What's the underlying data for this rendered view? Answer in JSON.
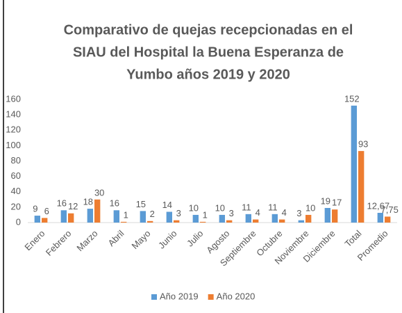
{
  "chart_data": {
    "type": "bar",
    "title": [
      "Comparativo de quejas recepcionadas en el",
      "SIAU del Hospital la Buena Esperanza de",
      "Yumbo años 2019 y 2020"
    ],
    "categories": [
      "Enero",
      "Febrero",
      "Marzo",
      "Abril",
      "Mayo",
      "Junio",
      "Julio",
      "Agosto",
      "Septiembre",
      "Octubre",
      "Noviembre",
      "Diciembre",
      "Total",
      "Promedio"
    ],
    "series": [
      {
        "name": "Año 2019",
        "color": "#5b9bd5",
        "values": [
          9,
          16,
          18,
          16,
          15,
          14,
          10,
          10,
          11,
          11,
          3,
          19,
          152,
          12.67
        ],
        "value_labels": [
          "9",
          "16",
          "18",
          "16",
          "15",
          "14",
          "10",
          "10",
          "11",
          "11",
          "3",
          "19",
          "152",
          "12,67"
        ]
      },
      {
        "name": "Año 2020",
        "color": "#ed7d31",
        "values": [
          6,
          12,
          30,
          1,
          2,
          3,
          1,
          3,
          4,
          4,
          10,
          17,
          93,
          7.75
        ],
        "value_labels": [
          "6",
          "12",
          "30",
          "1",
          "2",
          "3",
          "1",
          "3",
          "4",
          "4",
          "10",
          "17",
          "93",
          "7,75"
        ]
      }
    ],
    "ylim": [
      0,
      160
    ],
    "yticks": [
      0,
      20,
      40,
      60,
      80,
      100,
      120,
      140,
      160
    ],
    "grid": false,
    "legend": "bottom"
  }
}
